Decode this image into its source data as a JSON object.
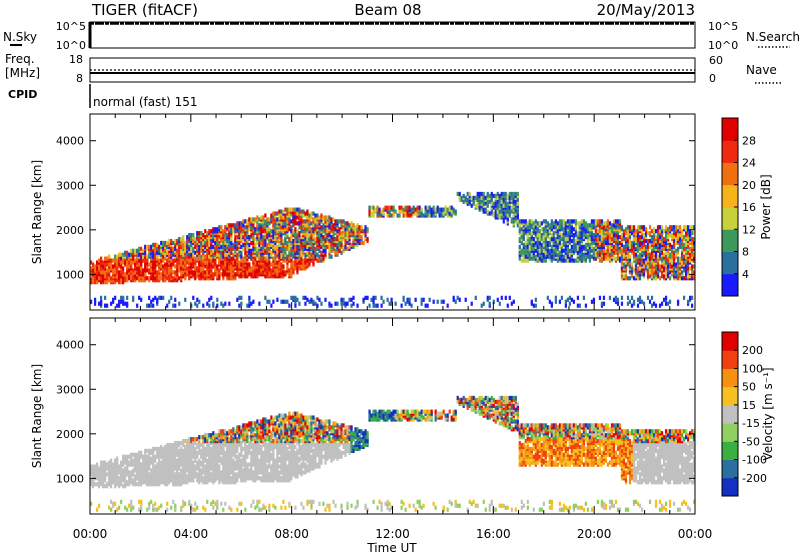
{
  "header": {
    "station": "TIGER (fitACF)",
    "beam": "Beam 08",
    "date": "20/May/2013"
  },
  "top_panels": {
    "nsky_label": "N.Sky",
    "nsky_ticks": [
      "10^5",
      "10^0"
    ],
    "nsearch_label": "N.Search",
    "nsearch_ticks": [
      "10^5",
      "10^0"
    ],
    "freq_label": "Freq.",
    "freq_unit": "[MHz]",
    "freq_ticks": [
      "18",
      "8"
    ],
    "nave_label": "Nave",
    "nave_ticks": [
      "60",
      "0"
    ],
    "cpid_label": "CPID",
    "cpid_text": "normal (fast) 151"
  },
  "chart_data": [
    {
      "type": "heatmap",
      "ylabel": "Slant Range [km]",
      "ylim": [
        200,
        4600
      ],
      "yticks": [
        "1000",
        "2000",
        "3000",
        "4000"
      ],
      "colorbar_label": "Power [dB]",
      "colorbar_ticks": [
        "4",
        "8",
        "12",
        "16",
        "20",
        "24",
        "28"
      ],
      "colorbar_range": [
        0,
        32
      ],
      "colorbar_colors": [
        "#1a1aff",
        "#2a6fa0",
        "#3d9a5a",
        "#c7d13a",
        "#f6b21a",
        "#f07010",
        "#f02a10",
        "#e00000"
      ]
    },
    {
      "type": "heatmap",
      "ylabel": "Slant Range [km]",
      "ylim": [
        200,
        4600
      ],
      "yticks": [
        "1000",
        "2000",
        "3000",
        "4000"
      ],
      "colorbar_label": "Velocity [m s⁻¹]",
      "colorbar_ticks": [
        "200",
        "100",
        "50",
        "15",
        "-15",
        "-50",
        "-100",
        "-200"
      ],
      "colorbar_colors": [
        "#1530c0",
        "#2a6fa0",
        "#3ab040",
        "#90d060",
        "#c0c0c0",
        "#f5c020",
        "#f59010",
        "#f04010",
        "#e00000"
      ]
    }
  ],
  "x_axis": {
    "ticks": [
      "00:00",
      "04:00",
      "08:00",
      "12:00",
      "16:00",
      "20:00",
      "00:00"
    ],
    "label": "Time UT",
    "range_hours": [
      0,
      24
    ]
  }
}
